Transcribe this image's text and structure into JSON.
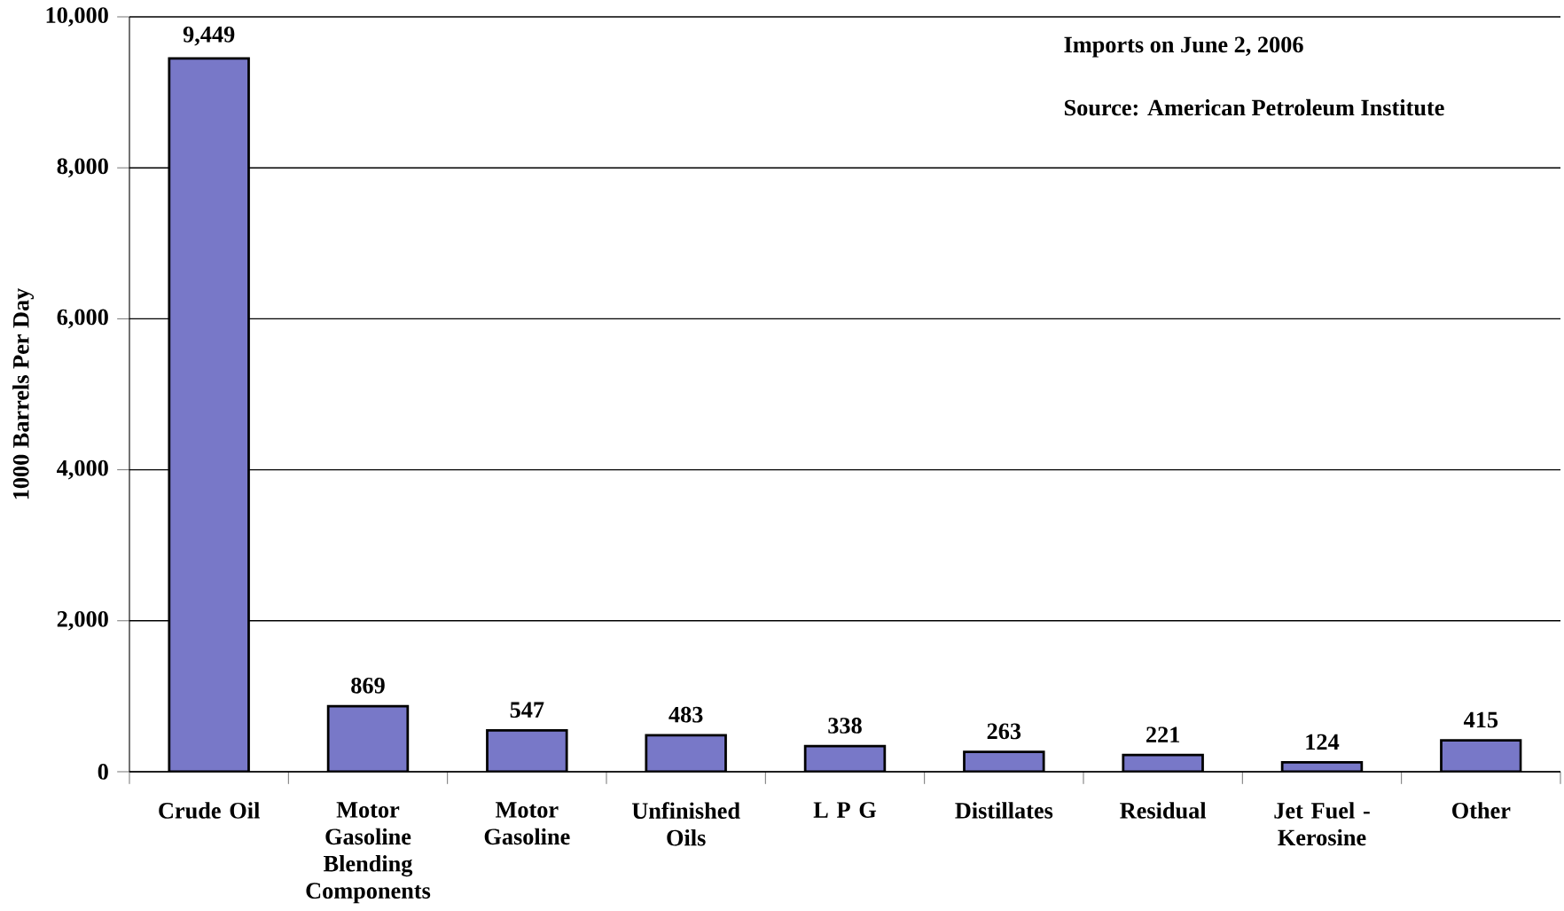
{
  "chart_data": {
    "type": "bar",
    "ylabel": "1000 Barrels Per Day",
    "categories": [
      "Crude Oil",
      "Motor Gasoline Blending Components",
      "Motor Gasoline",
      "Unfinished Oils",
      "L P G",
      "Distillates",
      "Residual",
      "Jet Fuel - Kerosine",
      "Other"
    ],
    "values": [
      9449,
      869,
      547,
      483,
      338,
      263,
      221,
      124,
      415
    ],
    "value_labels": [
      "9,449",
      "869",
      "547",
      "483",
      "338",
      "263",
      "221",
      "124",
      "415"
    ],
    "color": "#7878c8",
    "ylim": [
      0,
      10000
    ],
    "yticks": [
      {
        "value": 0,
        "label": "0"
      },
      {
        "value": 2000,
        "label": "2,000"
      },
      {
        "value": 4000,
        "label": "4,000"
      },
      {
        "value": 6000,
        "label": "6,000"
      },
      {
        "value": 8000,
        "label": "8,000"
      },
      {
        "value": 10000,
        "label": "10,000"
      }
    ],
    "grid": "y",
    "annotations": [
      "Imports on June 2, 2006",
      "Source:  American Petroleum Institute"
    ]
  }
}
